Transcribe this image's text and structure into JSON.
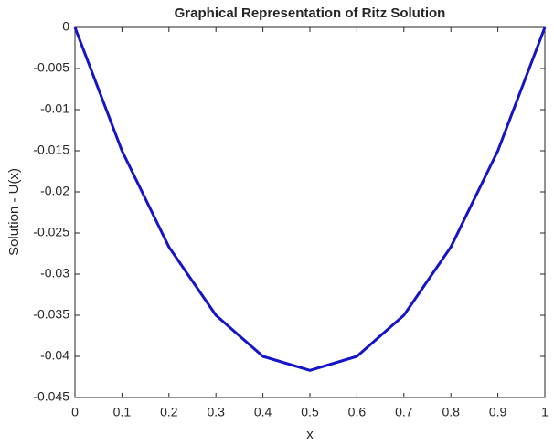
{
  "chart_data": {
    "type": "line",
    "title": "Graphical Representation of Ritz Solution",
    "xlabel": "x",
    "ylabel": "Solution - U(x)",
    "x": [
      0,
      0.1,
      0.2,
      0.3,
      0.4,
      0.5,
      0.6,
      0.7,
      0.8,
      0.9,
      1
    ],
    "series": [
      {
        "color": "#1414c8",
        "values": [
          0,
          -0.015,
          -0.0267,
          -0.035,
          -0.04,
          -0.0417,
          -0.04,
          -0.035,
          -0.0267,
          -0.015,
          0
        ]
      }
    ],
    "xlim": [
      0,
      1
    ],
    "xticks": [
      0,
      0.1,
      0.2,
      0.3,
      0.4,
      0.5,
      0.6,
      0.7,
      0.8,
      0.9,
      1
    ],
    "ylim": [
      -0.045,
      0
    ],
    "yticks": [
      0,
      -0.005,
      -0.01,
      -0.015,
      -0.02,
      -0.025,
      -0.03,
      -0.035,
      -0.04,
      -0.045
    ],
    "grid": false
  }
}
